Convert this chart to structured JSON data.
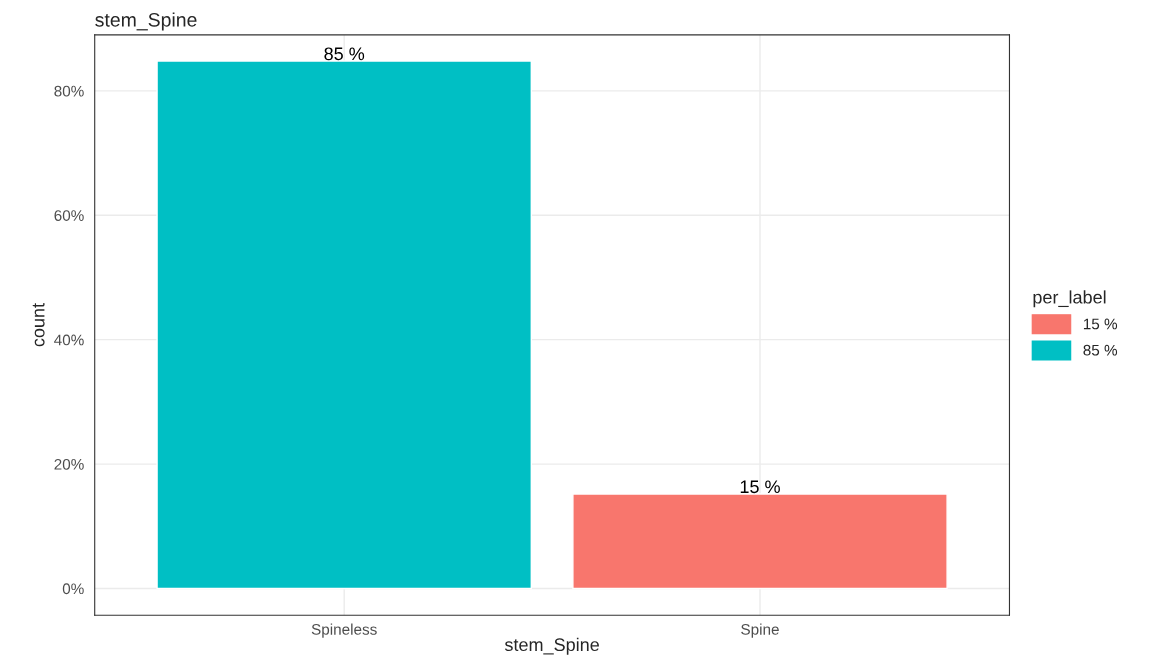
{
  "chart_data": {
    "type": "bar",
    "title": "stem_Spine",
    "xlabel": "stem_Spine",
    "ylabel": "count",
    "legend_title": "per_label",
    "categories": [
      "Spineless",
      "Spine"
    ],
    "series": [
      {
        "name": "15 %",
        "color": "#f8766d",
        "values": [
          null,
          15.2
        ],
        "value_labels": [
          null,
          "15 %"
        ]
      },
      {
        "name": "85 %",
        "color": "#00bfc4",
        "values": [
          84.8,
          null
        ],
        "value_labels": [
          "85 %",
          null
        ]
      }
    ],
    "ylim": [
      -4.3,
      89
    ],
    "yticks": [
      {
        "value": 0,
        "label": "0%"
      },
      {
        "value": 20,
        "label": "20%"
      },
      {
        "value": 40,
        "label": "40%"
      },
      {
        "value": 60,
        "label": "60%"
      },
      {
        "value": 80,
        "label": "80%"
      }
    ],
    "grid": true,
    "legend": "right"
  }
}
